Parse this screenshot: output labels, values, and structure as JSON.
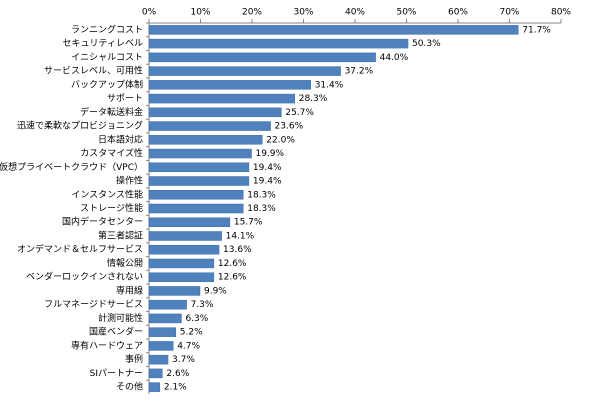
{
  "chart_data": {
    "type": "barh",
    "categories": [
      "ランニングコスト",
      "セキュリティレベル",
      "イニシャルコスト",
      "サービスレベル、可用性",
      "バックアップ体制",
      "サポート",
      "データ転送料金",
      "迅速で柔軟なプロビジョニング",
      "日本語対応",
      "カスタマイズ性",
      "仮想プライベートクラウド（VPC）",
      "操作性",
      "インスタンス性能",
      "ストレージ性能",
      "国内データセンター",
      "第三者認証",
      "オンデマンド＆セルフサービス",
      "情報公開",
      "ベンダーロックインされない",
      "専用線",
      "フルマネージドサービス",
      "計測可能性",
      "国産ベンダー",
      "専有ハードウェア",
      "事例",
      "SIパートナー",
      "その他"
    ],
    "values": [
      71.7,
      50.3,
      44.0,
      37.2,
      31.4,
      28.3,
      25.7,
      23.6,
      22.0,
      19.9,
      19.4,
      19.4,
      18.3,
      18.3,
      15.7,
      14.1,
      13.6,
      12.6,
      12.6,
      9.9,
      7.3,
      6.3,
      5.2,
      4.7,
      3.7,
      2.6,
      2.1
    ],
    "value_labels": [
      "71.7%",
      "50.3%",
      "44.0%",
      "37.2%",
      "31.4%",
      "28.3%",
      "25.7%",
      "23.6%",
      "22.0%",
      "19.9%",
      "19.4%",
      "19.4%",
      "18.3%",
      "18.3%",
      "15.7%",
      "14.1%",
      "13.6%",
      "12.6%",
      "12.6%",
      "9.9%",
      "7.3%",
      "6.3%",
      "5.2%",
      "4.7%",
      "3.7%",
      "2.6%",
      "2.1%"
    ],
    "color": "#4f81bd",
    "xlim": [
      0,
      80
    ],
    "xticks": [
      {
        "value": 0,
        "label": "0%"
      },
      {
        "value": 10,
        "label": "10%"
      },
      {
        "value": 20,
        "label": "20%"
      },
      {
        "value": 30,
        "label": "30%"
      },
      {
        "value": 40,
        "label": "40%"
      },
      {
        "value": 50,
        "label": "50%"
      },
      {
        "value": 60,
        "label": "60%"
      },
      {
        "value": 70,
        "label": "70%"
      },
      {
        "value": 80,
        "label": "80%"
      }
    ],
    "grid": false
  }
}
